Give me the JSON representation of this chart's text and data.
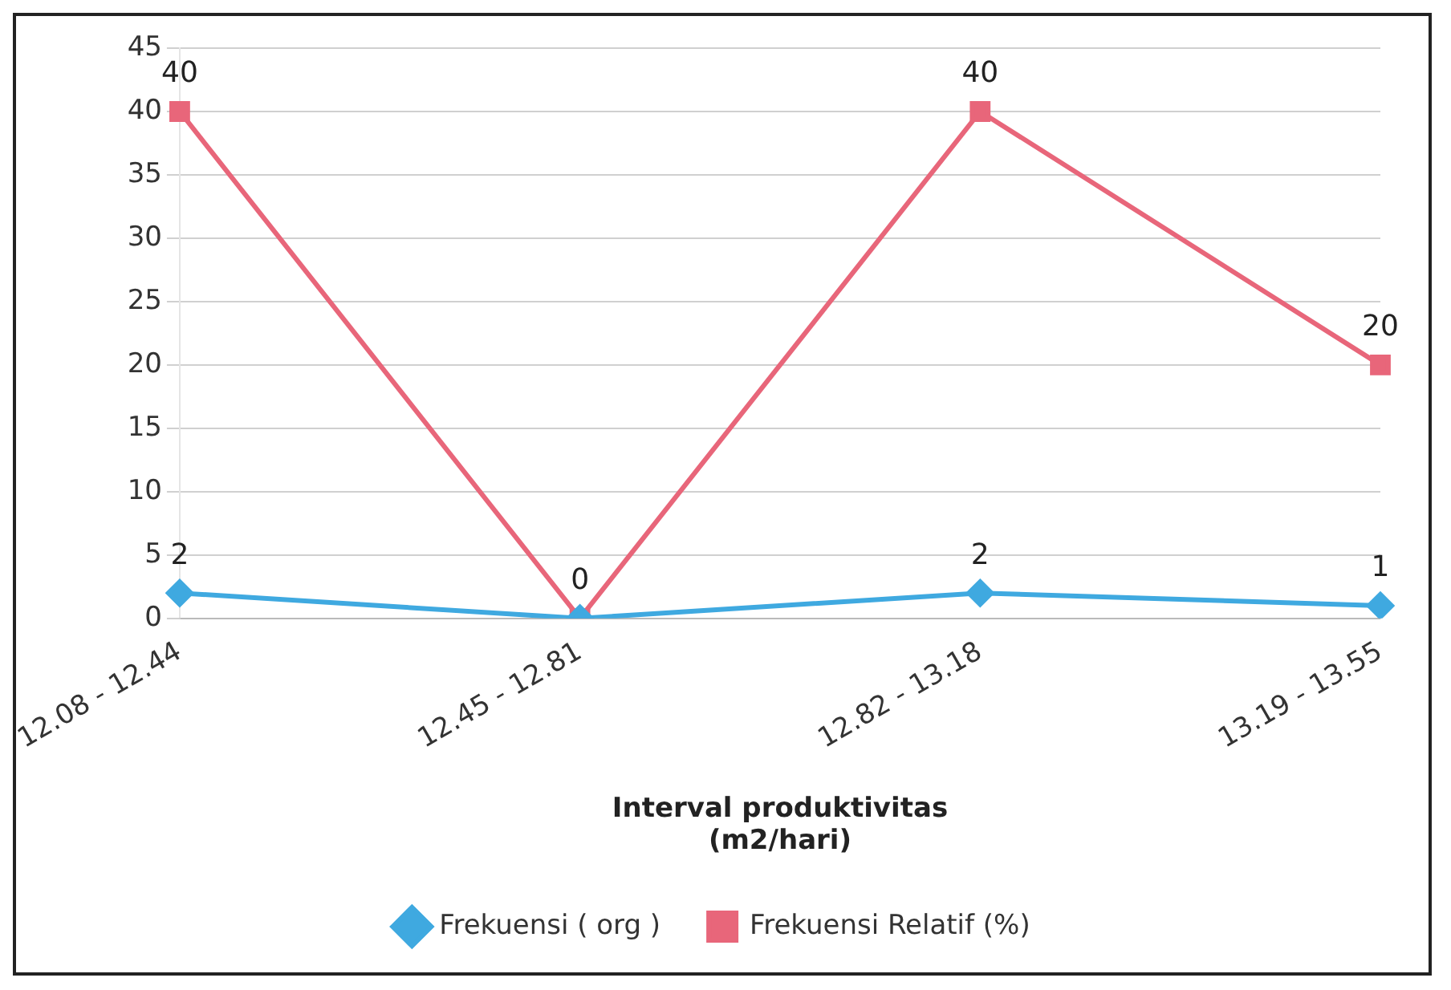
{
  "chart_data": {
    "type": "line",
    "categories": [
      "12.08 - 12.44",
      "12.45 - 12.81",
      "12.82 - 13.18",
      "13.19 - 13.55"
    ],
    "series": [
      {
        "name": "Frekuensi ( org )",
        "color": "#3fa9e0",
        "marker": "diamond",
        "values": [
          2,
          0,
          2,
          1
        ],
        "value_labels": [
          "2",
          "0",
          "2",
          "1"
        ]
      },
      {
        "name": "Frekuensi Relatif (%)",
        "color": "#e8667a",
        "marker": "square",
        "values": [
          40,
          0,
          40,
          20
        ],
        "value_labels": [
          "40",
          null,
          "40",
          "20"
        ]
      }
    ],
    "xlabel": "Interval produktivitas\n(m2/hari)",
    "ylim": [
      0,
      45
    ],
    "yticks": [
      0,
      5,
      10,
      15,
      20,
      25,
      30,
      35,
      40,
      45
    ],
    "grid": "y",
    "legend": "bottom",
    "line_style": "solid"
  }
}
